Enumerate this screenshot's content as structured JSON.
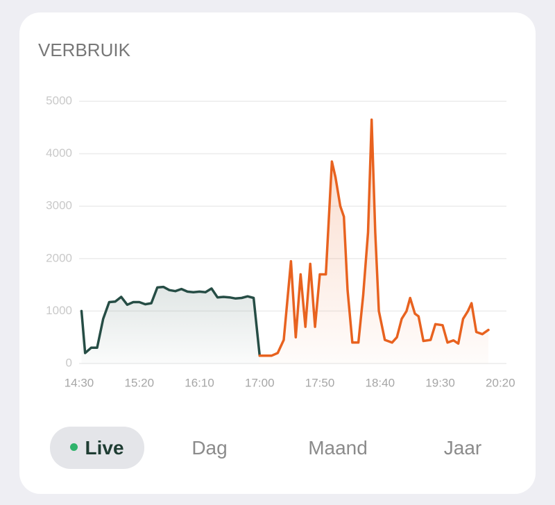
{
  "chart_data": {
    "type": "line",
    "title": "VERBRUIK",
    "xlim": [
      "14:30",
      "20:25"
    ],
    "xticks": [
      "14:30",
      "15:20",
      "16:10",
      "17:00",
      "17:50",
      "18:40",
      "19:30",
      "20:20"
    ],
    "ylim": [
      0,
      5000
    ],
    "yticks": [
      0,
      1000,
      2000,
      3000,
      4000,
      5000
    ],
    "grid": true,
    "series": [
      {
        "color": "#264d45",
        "x": [
          "14:32",
          "14:35",
          "14:40",
          "14:45",
          "14:50",
          "14:55",
          "15:00",
          "15:05",
          "15:10",
          "15:15",
          "15:20",
          "15:25",
          "15:30",
          "15:35",
          "15:40",
          "15:45",
          "15:50",
          "15:55",
          "16:00",
          "16:05",
          "16:10",
          "16:15",
          "16:20",
          "16:25",
          "16:30",
          "16:35",
          "16:40",
          "16:45",
          "16:50",
          "16:55",
          "17:00"
        ],
        "values": [
          1000,
          200,
          300,
          300,
          850,
          1170,
          1180,
          1270,
          1120,
          1170,
          1170,
          1130,
          1150,
          1450,
          1460,
          1400,
          1380,
          1420,
          1370,
          1360,
          1370,
          1360,
          1430,
          1260,
          1270,
          1260,
          1240,
          1250,
          1280,
          1250,
          150
        ]
      },
      {
        "color": "#e8621f",
        "x": [
          "17:00",
          "17:10",
          "17:15",
          "17:20",
          "17:26",
          "17:30",
          "17:34",
          "17:38",
          "17:42",
          "17:46",
          "17:50",
          "17:55",
          "18:00",
          "18:03",
          "18:07",
          "18:10",
          "18:13",
          "18:17",
          "18:22",
          "18:26",
          "18:30",
          "18:33",
          "18:36",
          "18:39",
          "18:44",
          "18:50",
          "18:54",
          "18:58",
          "19:02",
          "19:05",
          "19:09",
          "19:12",
          "19:16",
          "19:22",
          "19:26",
          "19:32",
          "19:36",
          "19:41",
          "19:45",
          "19:49",
          "19:53",
          "19:56",
          "20:00",
          "20:05",
          "20:10"
        ],
        "values": [
          150,
          150,
          200,
          450,
          1950,
          500,
          1700,
          700,
          1900,
          700,
          1700,
          1700,
          3850,
          3550,
          3000,
          2800,
          1400,
          400,
          400,
          1300,
          2500,
          4650,
          2500,
          1000,
          450,
          400,
          500,
          850,
          1000,
          1250,
          950,
          900,
          430,
          450,
          750,
          730,
          400,
          440,
          380,
          850,
          1000,
          1150,
          600,
          560,
          640
        ]
      }
    ]
  },
  "tabs": [
    "Live",
    "Dag",
    "Maand",
    "Jaar"
  ]
}
